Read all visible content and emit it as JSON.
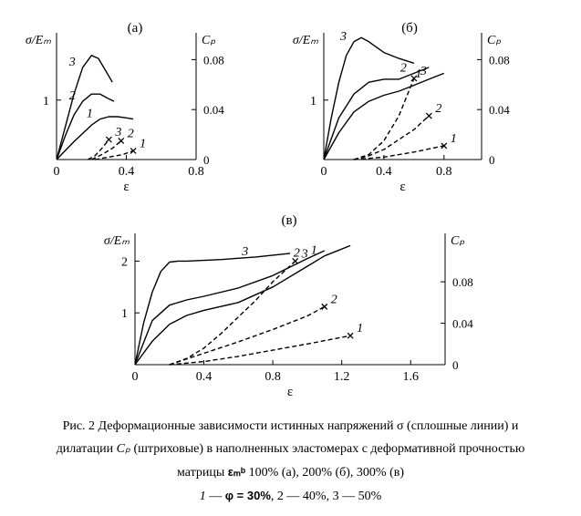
{
  "chart_data": [
    {
      "type": "line",
      "title": "(а)",
      "xlabel": "ε",
      "ylabel": "σ/Eₘ",
      "y2label": "Cₚ",
      "xlim": [
        0,
        0.8
      ],
      "ylim": [
        0,
        2.1
      ],
      "y2lim": [
        0,
        0.1
      ],
      "xticks": [
        0,
        0.4,
        0.8
      ],
      "xticklabels": [
        "0",
        "0.4",
        "0.8"
      ],
      "yticks": [
        1
      ],
      "yticklabels": [
        "1"
      ],
      "y2ticks": [
        0,
        0.04,
        0.08
      ],
      "y2ticklabels": [
        "0",
        "0.04",
        "0.08"
      ],
      "grid": false,
      "series": [
        {
          "name": "3",
          "axis": "left",
          "style": "solid",
          "x": [
            0,
            0.05,
            0.1,
            0.15,
            0.2,
            0.24,
            0.28,
            0.32
          ],
          "y": [
            0,
            0.55,
            1.1,
            1.55,
            1.75,
            1.7,
            1.5,
            1.3
          ]
        },
        {
          "name": "2",
          "axis": "left",
          "style": "solid",
          "x": [
            0,
            0.05,
            0.1,
            0.15,
            0.2,
            0.25,
            0.3,
            0.33
          ],
          "y": [
            0,
            0.4,
            0.75,
            0.98,
            1.1,
            1.1,
            1.02,
            0.98
          ]
        },
        {
          "name": "1",
          "axis": "left",
          "style": "solid",
          "x": [
            0,
            0.1,
            0.2,
            0.25,
            0.3,
            0.35,
            0.4,
            0.44
          ],
          "y": [
            0,
            0.3,
            0.58,
            0.68,
            0.72,
            0.72,
            0.7,
            0.68
          ]
        },
        {
          "name": "3",
          "axis": "right",
          "style": "dashed",
          "x": [
            0.18,
            0.22,
            0.26,
            0.3
          ],
          "y": [
            0,
            0.003,
            0.009,
            0.016
          ]
        },
        {
          "name": "2",
          "axis": "right",
          "style": "dashed",
          "x": [
            0.2,
            0.26,
            0.32,
            0.37
          ],
          "y": [
            0,
            0.004,
            0.009,
            0.015
          ]
        },
        {
          "name": "1",
          "axis": "right",
          "style": "dashed",
          "x": [
            0.22,
            0.3,
            0.38,
            0.44
          ],
          "y": [
            0,
            0.002,
            0.004,
            0.007
          ]
        }
      ]
    },
    {
      "type": "line",
      "title": "(б)",
      "xlabel": "ε",
      "ylabel": "σ/Eₘ",
      "y2label": "Cₚ",
      "xlim": [
        0,
        1.05
      ],
      "ylim": [
        0,
        2.1
      ],
      "y2lim": [
        0,
        0.1
      ],
      "xticks": [
        0,
        0.4,
        0.8
      ],
      "xticklabels": [
        "0",
        "0.4",
        "0.8"
      ],
      "yticks": [
        1
      ],
      "yticklabels": [
        "1"
      ],
      "y2ticks": [
        0,
        0.04,
        0.08
      ],
      "y2ticklabels": [
        "0",
        "0.04",
        "0.08"
      ],
      "grid": false,
      "series": [
        {
          "name": "3",
          "axis": "left",
          "style": "solid",
          "x": [
            0,
            0.05,
            0.1,
            0.15,
            0.2,
            0.25,
            0.3,
            0.4,
            0.5,
            0.6
          ],
          "y": [
            0,
            0.7,
            1.3,
            1.75,
            1.98,
            2.05,
            1.98,
            1.8,
            1.7,
            1.62
          ]
        },
        {
          "name": "2",
          "axis": "left",
          "style": "solid",
          "x": [
            0,
            0.1,
            0.2,
            0.3,
            0.4,
            0.5,
            0.6,
            0.7
          ],
          "y": [
            0,
            0.7,
            1.1,
            1.3,
            1.35,
            1.35,
            1.45,
            1.55
          ]
        },
        {
          "name": "1",
          "axis": "left",
          "style": "solid",
          "x": [
            0,
            0.1,
            0.2,
            0.3,
            0.4,
            0.5,
            0.6,
            0.7,
            0.8
          ],
          "y": [
            0,
            0.45,
            0.8,
            0.98,
            1.08,
            1.15,
            1.25,
            1.35,
            1.45
          ]
        },
        {
          "name": "3",
          "axis": "right",
          "style": "dashed",
          "x": [
            0.2,
            0.3,
            0.4,
            0.5,
            0.55,
            0.6
          ],
          "y": [
            0,
            0.004,
            0.015,
            0.035,
            0.05,
            0.065
          ]
        },
        {
          "name": "2",
          "axis": "right",
          "style": "dashed",
          "x": [
            0.2,
            0.3,
            0.4,
            0.5,
            0.6,
            0.7
          ],
          "y": [
            0,
            0.003,
            0.008,
            0.016,
            0.024,
            0.035
          ]
        },
        {
          "name": "1",
          "axis": "right",
          "style": "dashed",
          "x": [
            0.2,
            0.4,
            0.6,
            0.8
          ],
          "y": [
            0,
            0.002,
            0.006,
            0.011
          ]
        }
      ]
    },
    {
      "type": "line",
      "title": "(в)",
      "xlabel": "ε",
      "ylabel": "σ/Eₘ",
      "y2label": "Cₚ",
      "xlim": [
        0,
        1.8
      ],
      "ylim": [
        0,
        2.5
      ],
      "y2lim": [
        0,
        0.125
      ],
      "xticks": [
        0,
        0.4,
        0.8,
        1.2,
        1.6
      ],
      "xticklabels": [
        "0",
        "0.4",
        "0.8",
        "1.2",
        "1.6"
      ],
      "yticks": [
        1,
        2
      ],
      "yticklabels": [
        "1",
        "2"
      ],
      "y2ticks": [
        0,
        0.04,
        0.08
      ],
      "y2ticklabels": [
        "0",
        "0.04",
        "0.08"
      ],
      "grid": false,
      "series": [
        {
          "name": "3",
          "axis": "left",
          "style": "solid",
          "x": [
            0,
            0.05,
            0.1,
            0.15,
            0.2,
            0.25,
            0.3,
            0.5,
            0.7,
            0.9
          ],
          "y": [
            0,
            0.8,
            1.4,
            1.8,
            1.98,
            2.0,
            2.0,
            2.03,
            2.08,
            2.15
          ]
        },
        {
          "name": "2",
          "axis": "left",
          "style": "solid",
          "x": [
            0,
            0.1,
            0.2,
            0.3,
            0.4,
            0.6,
            0.8,
            1.0,
            1.1
          ],
          "y": [
            0,
            0.85,
            1.15,
            1.25,
            1.32,
            1.48,
            1.72,
            2.05,
            2.2
          ]
        },
        {
          "name": "1",
          "axis": "left",
          "style": "solid",
          "x": [
            0,
            0.1,
            0.2,
            0.3,
            0.4,
            0.6,
            0.8,
            1.0,
            1.1,
            1.25
          ],
          "y": [
            0,
            0.45,
            0.78,
            0.95,
            1.05,
            1.2,
            1.5,
            1.9,
            2.1,
            2.3
          ]
        },
        {
          "name": "3",
          "axis": "right",
          "style": "dashed",
          "x": [
            0.2,
            0.3,
            0.4,
            0.5,
            0.6,
            0.7,
            0.8,
            0.93
          ],
          "y": [
            0,
            0.006,
            0.016,
            0.03,
            0.046,
            0.062,
            0.08,
            0.1
          ]
        },
        {
          "name": "2",
          "axis": "right",
          "style": "dashed",
          "x": [
            0.2,
            0.4,
            0.6,
            0.8,
            1.0,
            1.1
          ],
          "y": [
            0,
            0.011,
            0.022,
            0.034,
            0.047,
            0.056
          ]
        },
        {
          "name": "1",
          "axis": "right",
          "style": "dashed",
          "x": [
            0.2,
            0.4,
            0.6,
            0.8,
            1.0,
            1.25
          ],
          "y": [
            0,
            0.003,
            0.008,
            0.014,
            0.02,
            0.028
          ]
        }
      ]
    }
  ],
  "caption": {
    "line1": "Рис. 2 Деформационные зависимости истинных напряжений σ (сплошные линии) и",
    "line2_pre": "дилатации ",
    "line2_var": "Cₚ",
    "line2_post": " (штриховые) в наполненных эластомерах с деформативной прочностью",
    "line3_pre": "матрицы ",
    "line3_sym": "εₘᵇ",
    "line3_post": " 100% (а), 200% (б), 300% (в)",
    "line4_n1": "1",
    "line4_dash1": " — ",
    "line4_phi": "φ = 30%",
    "line4_rest": ", 2 — 40%, 3 — 50%"
  }
}
